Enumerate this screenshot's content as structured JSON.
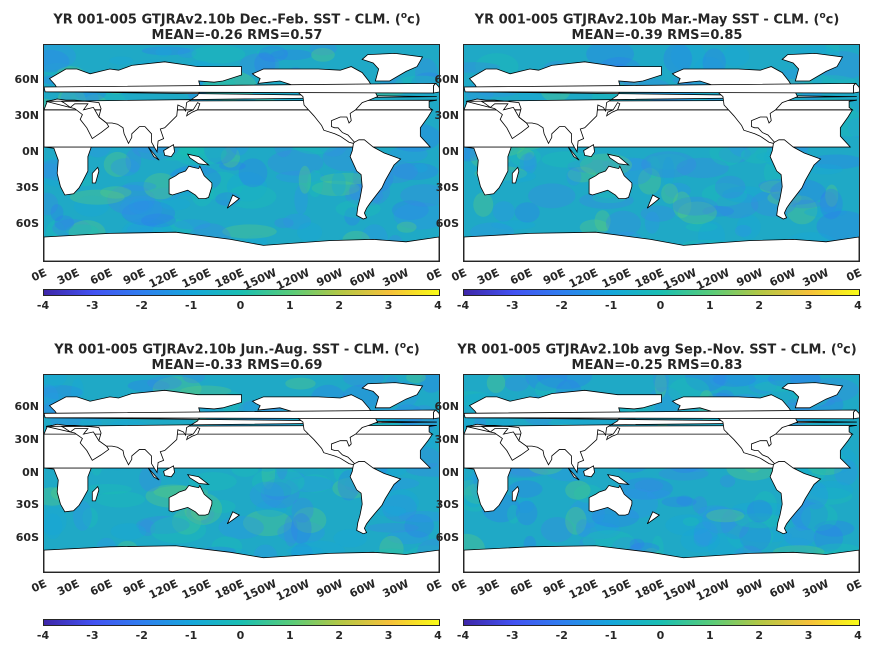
{
  "panels": [
    {
      "title_line1": "YR 001-005 GTJRAv2.10b  Dec.-Feb. SST - CLM. (",
      "sup": "o",
      "title_end": "c)",
      "title_line2": "MEAN=-0.26   RMS=0.57"
    },
    {
      "title_line1": "YR 001-005 GTJRAv2.10b Mar.-May SST - CLM. (",
      "sup": "o",
      "title_end": "c)",
      "title_line2": "MEAN=-0.39   RMS=0.85"
    },
    {
      "title_line1": "YR 001-005 GTJRAv2.10b Jun.-Aug. SST - CLM. (",
      "sup": "o",
      "title_end": "c)",
      "title_line2": "MEAN=-0.33   RMS=0.69"
    },
    {
      "title_line1": "YR 001-005 GTJRAv2.10b avg Sep.-Nov. SST - CLM. (",
      "sup": "o",
      "title_end": "c)",
      "title_line2": "MEAN=-0.25   RMS=0.83"
    }
  ],
  "lat_labels": [
    "60N",
    "30N",
    "0N",
    "30S",
    "60S"
  ],
  "lon_labels": [
    "0E",
    "30E",
    "60E",
    "90E",
    "120E",
    "150E",
    "180E",
    "150W",
    "120W",
    "90W",
    "60W",
    "30W",
    "0E"
  ],
  "colorbar": {
    "ticks": [
      "-4",
      "-3",
      "-2",
      "-1",
      "0",
      "1",
      "2",
      "3",
      "4"
    ],
    "colors": [
      "#3e26a8",
      "#4352f2",
      "#2f7fef",
      "#16a7db",
      "#1bbfb2",
      "#58cc7a",
      "#b3c745",
      "#f6c13a",
      "#f9fb15"
    ]
  },
  "ocean_color": "#1fa9c6",
  "land_color": "#ffffff"
}
